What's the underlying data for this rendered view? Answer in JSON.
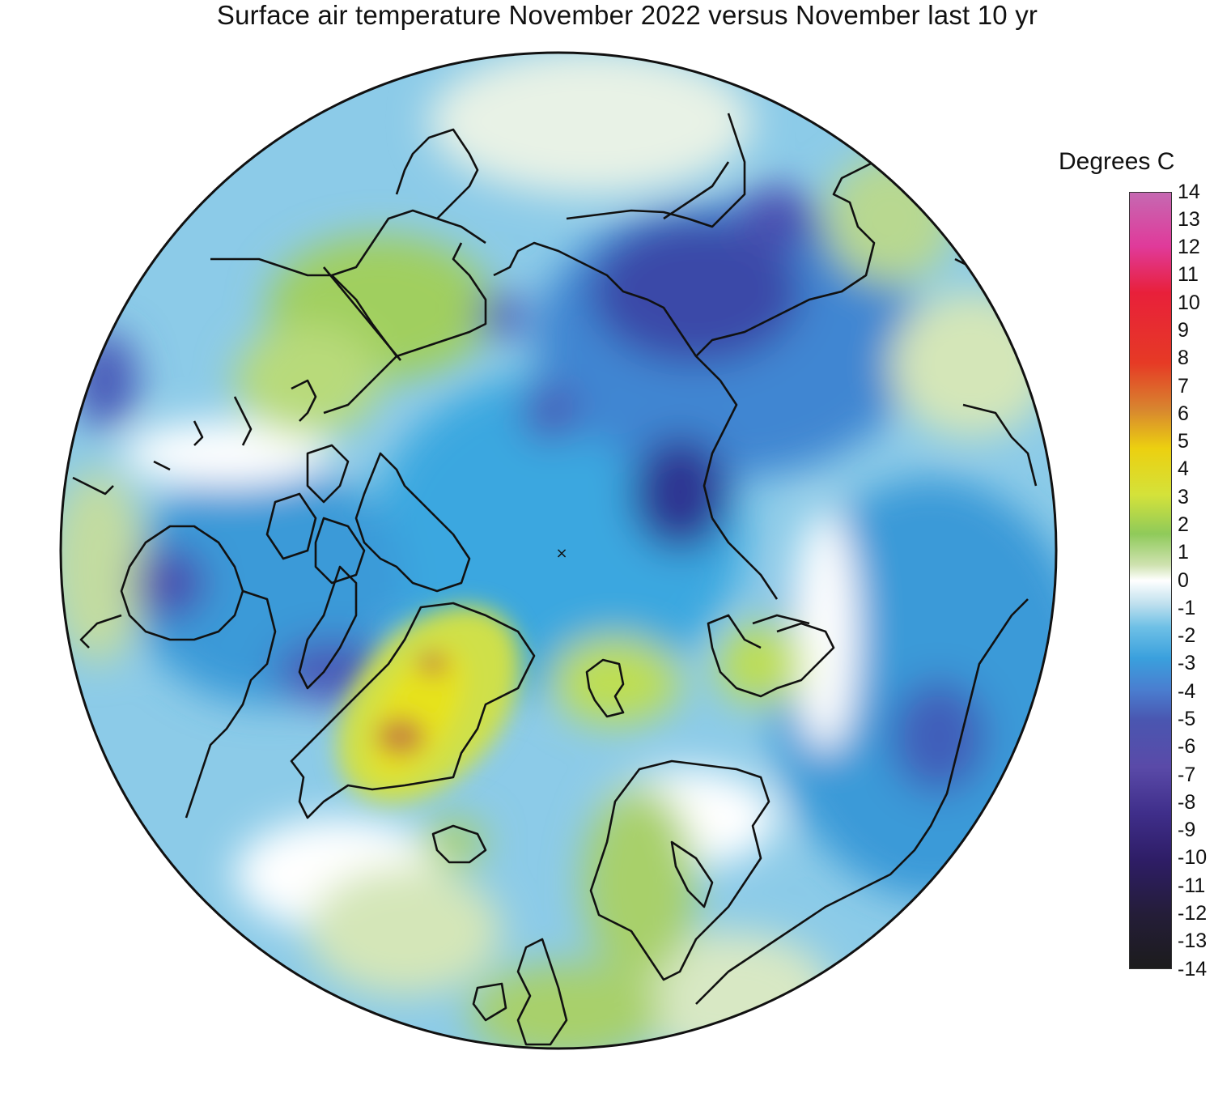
{
  "title": "Surface air temperature November 2022 versus November last 10 yr",
  "legend": {
    "title": "Degrees C",
    "ticks": [
      "14",
      "13",
      "12",
      "11",
      "10",
      "9",
      "8",
      "7",
      "6",
      "5",
      "4",
      "3",
      "2",
      "1",
      "0",
      "-1",
      "-2",
      "-3",
      "-4",
      "-5",
      "-6",
      "-7",
      "-8",
      "-9",
      "-10",
      "-11",
      "-12",
      "-13",
      "-14"
    ]
  },
  "map": {
    "projection": "north polar stereographic",
    "pole_marker": "×",
    "colors": {
      "very_cold": "#2a1f5e",
      "cold_dark": "#3a3f9a",
      "cold": "#4a7ed0",
      "cool": "#3aa0dd",
      "slight_cool": "#90cde8",
      "neutral": "#ffffff",
      "slight_warm": "#cfe2b0",
      "warm": "#8fca5a",
      "warmer": "#d8e030",
      "hot": "#c88a3a",
      "coast": "#111111"
    }
  }
}
